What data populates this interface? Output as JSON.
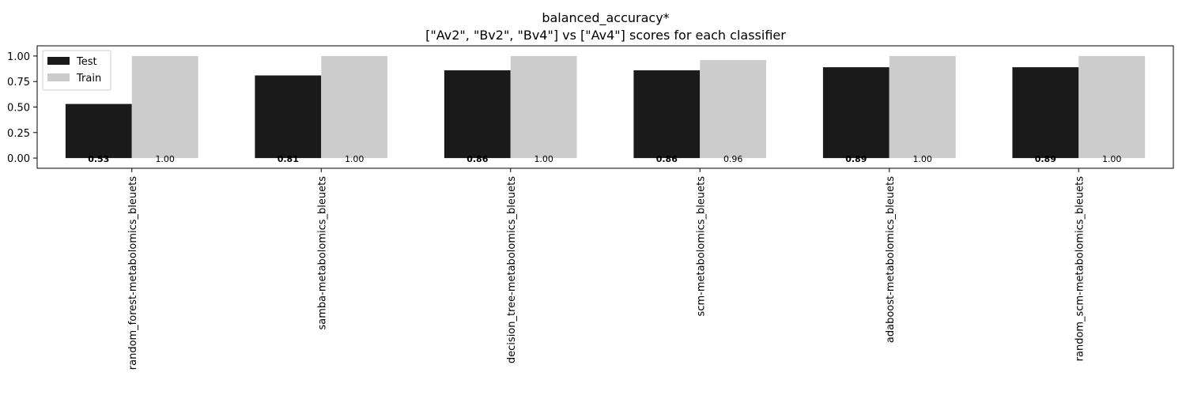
{
  "chart_data": {
    "type": "bar",
    "title": "balanced_accuracy*",
    "subtitle": "[\"Av2\", \"Bv2\", \"Bv4\"] vs [\"Av4\"] scores for each classifier",
    "categories": [
      "random_forest-metabolomics_bleuets",
      "samba-metabolomics_bleuets",
      "decision_tree-metabolomics_bleuets",
      "scm-metabolomics_bleuets",
      "adaboost-metabolomics_bleuets",
      "random_scm-metabolomics_bleuets"
    ],
    "series": [
      {
        "name": "Test",
        "color": "#1a1a1a",
        "values": [
          0.53,
          0.81,
          0.86,
          0.86,
          0.89,
          0.89
        ],
        "labels": [
          "0.53",
          "0.81",
          "0.86",
          "0.86",
          "0.89",
          "0.89"
        ]
      },
      {
        "name": "Train",
        "color": "#cccccc",
        "values": [
          1.0,
          1.0,
          1.0,
          0.96,
          1.0,
          1.0
        ],
        "labels": [
          "1.00",
          "1.00",
          "1.00",
          "0.96",
          "1.00",
          "1.00"
        ]
      }
    ],
    "y_ticks": [
      "0.00",
      "0.25",
      "0.50",
      "0.75",
      "1.00"
    ],
    "ylim": [
      -0.1,
      1.1
    ],
    "xlabel": "",
    "ylabel": "",
    "legend_position": "top-left",
    "grid": false
  }
}
